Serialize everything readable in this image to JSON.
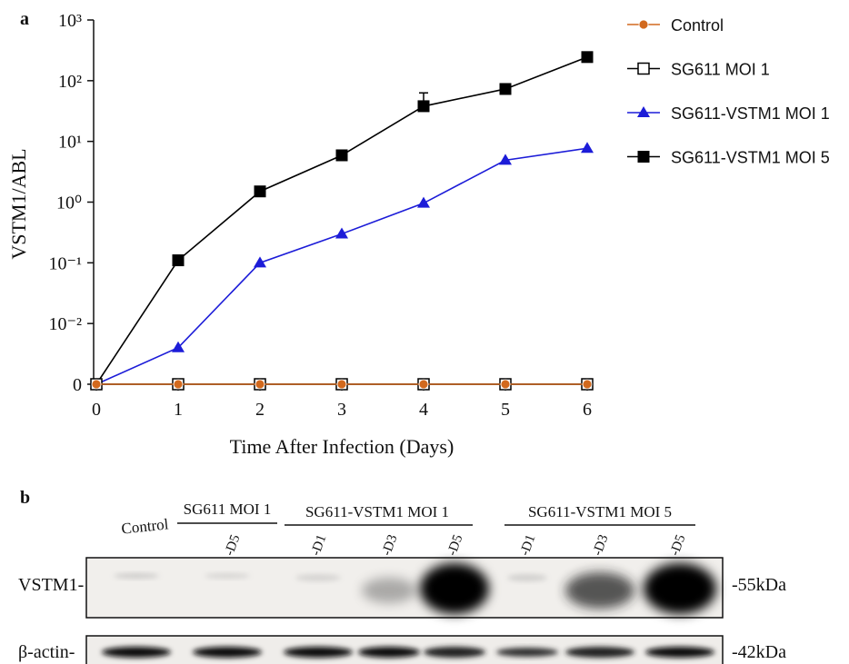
{
  "panel_a": "a",
  "chart_data": {
    "type": "line",
    "x": [
      0,
      1,
      2,
      3,
      4,
      5,
      6
    ],
    "xlim": [
      0,
      6
    ],
    "xticks": [
      0,
      1,
      2,
      3,
      4,
      5,
      6
    ],
    "ylim": [
      0.001,
      1000
    ],
    "log_y": true,
    "yticks": [
      {
        "value": 0.001,
        "label": "0"
      },
      {
        "value": 0.01,
        "label": "10⁻²"
      },
      {
        "value": 0.1,
        "label": "10⁻¹"
      },
      {
        "value": 1,
        "label": "10⁰"
      },
      {
        "value": 10,
        "label": "10¹"
      },
      {
        "value": 100,
        "label": "10²"
      },
      {
        "value": 1000,
        "label": "10³"
      }
    ],
    "x_label": "Time After Infection (Days)",
    "y_label": "VSTM1/ABL",
    "series": [
      {
        "name": "Control",
        "color": "#d2691e",
        "marker": "circle",
        "values": [
          0.001,
          0.001,
          0.001,
          0.001,
          0.001,
          0.001,
          0.001
        ]
      },
      {
        "name": "SG611 MOI 1",
        "color": "#000000",
        "marker": "open-square",
        "values": [
          0.001,
          0.001,
          0.001,
          0.001,
          0.001,
          0.001,
          0.001
        ]
      },
      {
        "name": "SG611-VSTM1 MOI 1",
        "color": "#1c1cd8",
        "marker": "triangle",
        "values": [
          0.001,
          0.004,
          0.1,
          0.3,
          0.96,
          4.9,
          7.7
        ]
      },
      {
        "name": "SG611-VSTM1 MOI 5",
        "color": "#000000",
        "marker": "square",
        "values": [
          0.001,
          0.11,
          1.5,
          5.9,
          38,
          73,
          245
        ],
        "errors": [
          null,
          null,
          null,
          null,
          25,
          null,
          null
        ]
      }
    ]
  },
  "blot": {
    "panel": "b",
    "control": "Control",
    "groups": [
      "SG611 MOI 1",
      "SG611-VSTM1 MOI 1",
      "SG611-VSTM1 MOI 5"
    ],
    "lanes": [
      "-D5",
      "-D1",
      "-D3",
      "-D5",
      "-D1",
      "-D3",
      "-D5"
    ],
    "rows": [
      "VSTM1-",
      "β-actin-"
    ],
    "sizes": [
      "-55kDa",
      "-42kDa"
    ]
  }
}
